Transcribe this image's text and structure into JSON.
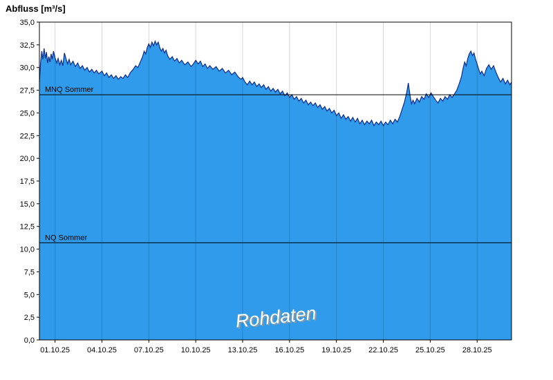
{
  "page": {
    "title": "Abfluss [m³/s]"
  },
  "watermark": {
    "text": "Rohdaten"
  },
  "chart_data": {
    "type": "area",
    "title": "Abfluss [m³/s]",
    "ylabel": "Abfluss [m³/s]",
    "xlabel": "",
    "grid": "vertical-only",
    "legend": "none",
    "colors": {
      "fill": "#2F9BEA",
      "line": "#0A2A8C",
      "grid": "#000000",
      "grid_opacity": 0.16,
      "reference": "#000000",
      "text": "#000000",
      "watermark_fill": "#ffffff",
      "watermark_outline": "#9a9a9a"
    },
    "y_axis": {
      "min": 0,
      "max": 35,
      "ticks": [
        {
          "v": 0,
          "label": "0,0"
        },
        {
          "v": 2.5,
          "label": "2,5"
        },
        {
          "v": 5,
          "label": "5,0"
        },
        {
          "v": 7.5,
          "label": "7,5"
        },
        {
          "v": 10,
          "label": "10,0"
        },
        {
          "v": 12.5,
          "label": "12,5"
        },
        {
          "v": 15,
          "label": "15,0"
        },
        {
          "v": 17.5,
          "label": "17,5"
        },
        {
          "v": 20,
          "label": "20,0"
        },
        {
          "v": 22.5,
          "label": "22,5"
        },
        {
          "v": 25,
          "label": "25,0"
        },
        {
          "v": 27.5,
          "label": "27,5"
        },
        {
          "v": 30,
          "label": "30,0"
        },
        {
          "v": 32.5,
          "label": "32,5"
        },
        {
          "v": 35,
          "label": "35,0"
        }
      ]
    },
    "x_axis": {
      "min": -1,
      "max": 29.2,
      "ticks": [
        {
          "t": 0,
          "label": "01.10.25"
        },
        {
          "t": 3,
          "label": "04.10.25"
        },
        {
          "t": 6,
          "label": "07.10.25"
        },
        {
          "t": 9,
          "label": "10.10.25"
        },
        {
          "t": 12,
          "label": "13.10.25"
        },
        {
          "t": 15,
          "label": "16.10.25"
        },
        {
          "t": 18,
          "label": "19.10.25"
        },
        {
          "t": 21,
          "label": "22.10.25"
        },
        {
          "t": 24,
          "label": "25.10.25"
        },
        {
          "t": 27,
          "label": "28.10.25"
        }
      ]
    },
    "reference_lines": [
      {
        "name": "MNQ Sommer",
        "value": 27.0
      },
      {
        "name": "NQ Sommer",
        "value": 10.7
      }
    ],
    "series": [
      {
        "name": "Rohdaten",
        "points": [
          [
            -1.0,
            28.4
          ],
          [
            -0.92,
            30.6
          ],
          [
            -0.85,
            31.8
          ],
          [
            -0.78,
            30.9
          ],
          [
            -0.7,
            32.1
          ],
          [
            -0.62,
            31.0
          ],
          [
            -0.55,
            31.7
          ],
          [
            -0.48,
            30.5
          ],
          [
            -0.4,
            31.2
          ],
          [
            -0.32,
            30.6
          ],
          [
            -0.25,
            31.5
          ],
          [
            -0.18,
            30.9
          ],
          [
            -0.1,
            31.8
          ],
          [
            0.0,
            31.1
          ],
          [
            0.1,
            30.5
          ],
          [
            0.2,
            31.0
          ],
          [
            0.3,
            30.3
          ],
          [
            0.4,
            30.8
          ],
          [
            0.5,
            30.2
          ],
          [
            0.6,
            31.6
          ],
          [
            0.7,
            31.0
          ],
          [
            0.8,
            30.4
          ],
          [
            0.9,
            30.9
          ],
          [
            1.0,
            30.3
          ],
          [
            1.15,
            30.7
          ],
          [
            1.3,
            30.1
          ],
          [
            1.45,
            30.5
          ],
          [
            1.6,
            29.9
          ],
          [
            1.75,
            30.2
          ],
          [
            1.9,
            29.7
          ],
          [
            2.05,
            30.0
          ],
          [
            2.2,
            29.5
          ],
          [
            2.35,
            29.8
          ],
          [
            2.5,
            29.4
          ],
          [
            2.65,
            29.7
          ],
          [
            2.8,
            29.3
          ],
          [
            3.0,
            29.6
          ],
          [
            3.15,
            29.1
          ],
          [
            3.3,
            29.4
          ],
          [
            3.45,
            28.9
          ],
          [
            3.6,
            29.2
          ],
          [
            3.75,
            28.8
          ],
          [
            3.9,
            29.1
          ],
          [
            4.05,
            28.7
          ],
          [
            4.2,
            29.0
          ],
          [
            4.35,
            28.8
          ],
          [
            4.5,
            29.2
          ],
          [
            4.65,
            28.9
          ],
          [
            4.8,
            29.4
          ],
          [
            5.0,
            29.8
          ],
          [
            5.15,
            30.2
          ],
          [
            5.3,
            30.0
          ],
          [
            5.45,
            30.6
          ],
          [
            5.6,
            31.2
          ],
          [
            5.7,
            31.8
          ],
          [
            5.8,
            31.5
          ],
          [
            5.9,
            32.2
          ],
          [
            6.0,
            32.6
          ],
          [
            6.1,
            32.2
          ],
          [
            6.2,
            32.8
          ],
          [
            6.3,
            32.4
          ],
          [
            6.4,
            32.9
          ],
          [
            6.5,
            32.5
          ],
          [
            6.6,
            32.8
          ],
          [
            6.7,
            32.2
          ],
          [
            6.8,
            31.8
          ],
          [
            6.9,
            32.1
          ],
          [
            7.0,
            31.6
          ],
          [
            7.1,
            31.9
          ],
          [
            7.2,
            31.3
          ],
          [
            7.35,
            30.9
          ],
          [
            7.5,
            31.2
          ],
          [
            7.65,
            30.7
          ],
          [
            7.8,
            31.0
          ],
          [
            7.95,
            30.5
          ],
          [
            8.1,
            30.8
          ],
          [
            8.3,
            30.3
          ],
          [
            8.5,
            30.6
          ],
          [
            8.7,
            30.1
          ],
          [
            8.85,
            30.4
          ],
          [
            9.0,
            30.8
          ],
          [
            9.15,
            30.4
          ],
          [
            9.3,
            30.7
          ],
          [
            9.45,
            30.1
          ],
          [
            9.6,
            30.4
          ],
          [
            9.75,
            29.9
          ],
          [
            9.9,
            30.2
          ],
          [
            10.1,
            29.8
          ],
          [
            10.3,
            30.1
          ],
          [
            10.5,
            29.6
          ],
          [
            10.7,
            29.9
          ],
          [
            10.9,
            29.4
          ],
          [
            11.1,
            29.7
          ],
          [
            11.3,
            29.2
          ],
          [
            11.5,
            29.5
          ],
          [
            11.7,
            29.0
          ],
          [
            11.9,
            28.7
          ],
          [
            12.0,
            28.9
          ],
          [
            12.15,
            28.4
          ],
          [
            12.3,
            28.1
          ],
          [
            12.45,
            28.5
          ],
          [
            12.6,
            28.1
          ],
          [
            12.75,
            28.4
          ],
          [
            12.9,
            27.9
          ],
          [
            13.05,
            28.2
          ],
          [
            13.2,
            27.8
          ],
          [
            13.35,
            28.1
          ],
          [
            13.5,
            27.6
          ],
          [
            13.65,
            27.9
          ],
          [
            13.8,
            27.4
          ],
          [
            13.95,
            27.7
          ],
          [
            14.1,
            27.3
          ],
          [
            14.25,
            27.6
          ],
          [
            14.4,
            27.1
          ],
          [
            14.55,
            27.4
          ],
          [
            14.7,
            26.9
          ],
          [
            14.85,
            27.2
          ],
          [
            15.0,
            26.7
          ],
          [
            15.15,
            27.0
          ],
          [
            15.3,
            26.5
          ],
          [
            15.45,
            26.8
          ],
          [
            15.6,
            26.3
          ],
          [
            15.75,
            26.6
          ],
          [
            15.9,
            26.1
          ],
          [
            16.05,
            26.4
          ],
          [
            16.2,
            25.9
          ],
          [
            16.35,
            26.2
          ],
          [
            16.5,
            25.8
          ],
          [
            16.65,
            26.1
          ],
          [
            16.8,
            25.6
          ],
          [
            16.95,
            25.9
          ],
          [
            17.1,
            25.4
          ],
          [
            17.25,
            25.7
          ],
          [
            17.4,
            25.2
          ],
          [
            17.55,
            25.5
          ],
          [
            17.7,
            25.0
          ],
          [
            17.85,
            25.3
          ],
          [
            18.0,
            24.7
          ],
          [
            18.15,
            25.0
          ],
          [
            18.3,
            24.4
          ],
          [
            18.45,
            24.8
          ],
          [
            18.6,
            24.3
          ],
          [
            18.75,
            24.6
          ],
          [
            18.9,
            24.1
          ],
          [
            19.05,
            24.5
          ],
          [
            19.2,
            24.0
          ],
          [
            19.35,
            24.4
          ],
          [
            19.5,
            23.8
          ],
          [
            19.65,
            24.2
          ],
          [
            19.8,
            23.7
          ],
          [
            19.95,
            24.1
          ],
          [
            20.1,
            23.8
          ],
          [
            20.25,
            24.2
          ],
          [
            20.4,
            23.6
          ],
          [
            20.55,
            24.0
          ],
          [
            20.7,
            23.7
          ],
          [
            20.85,
            24.1
          ],
          [
            21.0,
            23.6
          ],
          [
            21.15,
            24.0
          ],
          [
            21.3,
            23.7
          ],
          [
            21.45,
            24.2
          ],
          [
            21.6,
            23.8
          ],
          [
            21.75,
            24.3
          ],
          [
            21.9,
            24.0
          ],
          [
            22.05,
            24.6
          ],
          [
            22.2,
            25.4
          ],
          [
            22.35,
            26.2
          ],
          [
            22.5,
            27.3
          ],
          [
            22.6,
            28.3
          ],
          [
            22.7,
            27.0
          ],
          [
            22.8,
            26.0
          ],
          [
            22.9,
            26.4
          ],
          [
            23.0,
            26.0
          ],
          [
            23.15,
            26.6
          ],
          [
            23.3,
            26.2
          ],
          [
            23.45,
            26.8
          ],
          [
            23.6,
            26.5
          ],
          [
            23.75,
            27.1
          ],
          [
            23.9,
            26.7
          ],
          [
            24.05,
            27.2
          ],
          [
            24.2,
            26.8
          ],
          [
            24.35,
            26.4
          ],
          [
            24.5,
            26.1
          ],
          [
            24.65,
            26.6
          ],
          [
            24.8,
            26.3
          ],
          [
            24.95,
            26.8
          ],
          [
            25.1,
            26.5
          ],
          [
            25.25,
            27.0
          ],
          [
            25.4,
            26.7
          ],
          [
            25.55,
            27.1
          ],
          [
            25.7,
            27.5
          ],
          [
            25.85,
            28.2
          ],
          [
            26.0,
            29.0
          ],
          [
            26.1,
            29.9
          ],
          [
            26.2,
            30.6
          ],
          [
            26.3,
            30.2
          ],
          [
            26.4,
            31.0
          ],
          [
            26.5,
            31.5
          ],
          [
            26.6,
            31.8
          ],
          [
            26.7,
            31.3
          ],
          [
            26.8,
            31.6
          ],
          [
            26.9,
            30.9
          ],
          [
            27.0,
            30.4
          ],
          [
            27.1,
            29.8
          ],
          [
            27.2,
            29.3
          ],
          [
            27.3,
            29.6
          ],
          [
            27.45,
            29.1
          ],
          [
            27.6,
            29.9
          ],
          [
            27.75,
            30.3
          ],
          [
            27.9,
            29.8
          ],
          [
            28.05,
            30.2
          ],
          [
            28.2,
            29.5
          ],
          [
            28.35,
            28.9
          ],
          [
            28.5,
            28.4
          ],
          [
            28.65,
            28.8
          ],
          [
            28.8,
            28.2
          ],
          [
            28.95,
            28.6
          ],
          [
            29.1,
            28.1
          ],
          [
            29.2,
            28.4
          ]
        ]
      }
    ]
  }
}
